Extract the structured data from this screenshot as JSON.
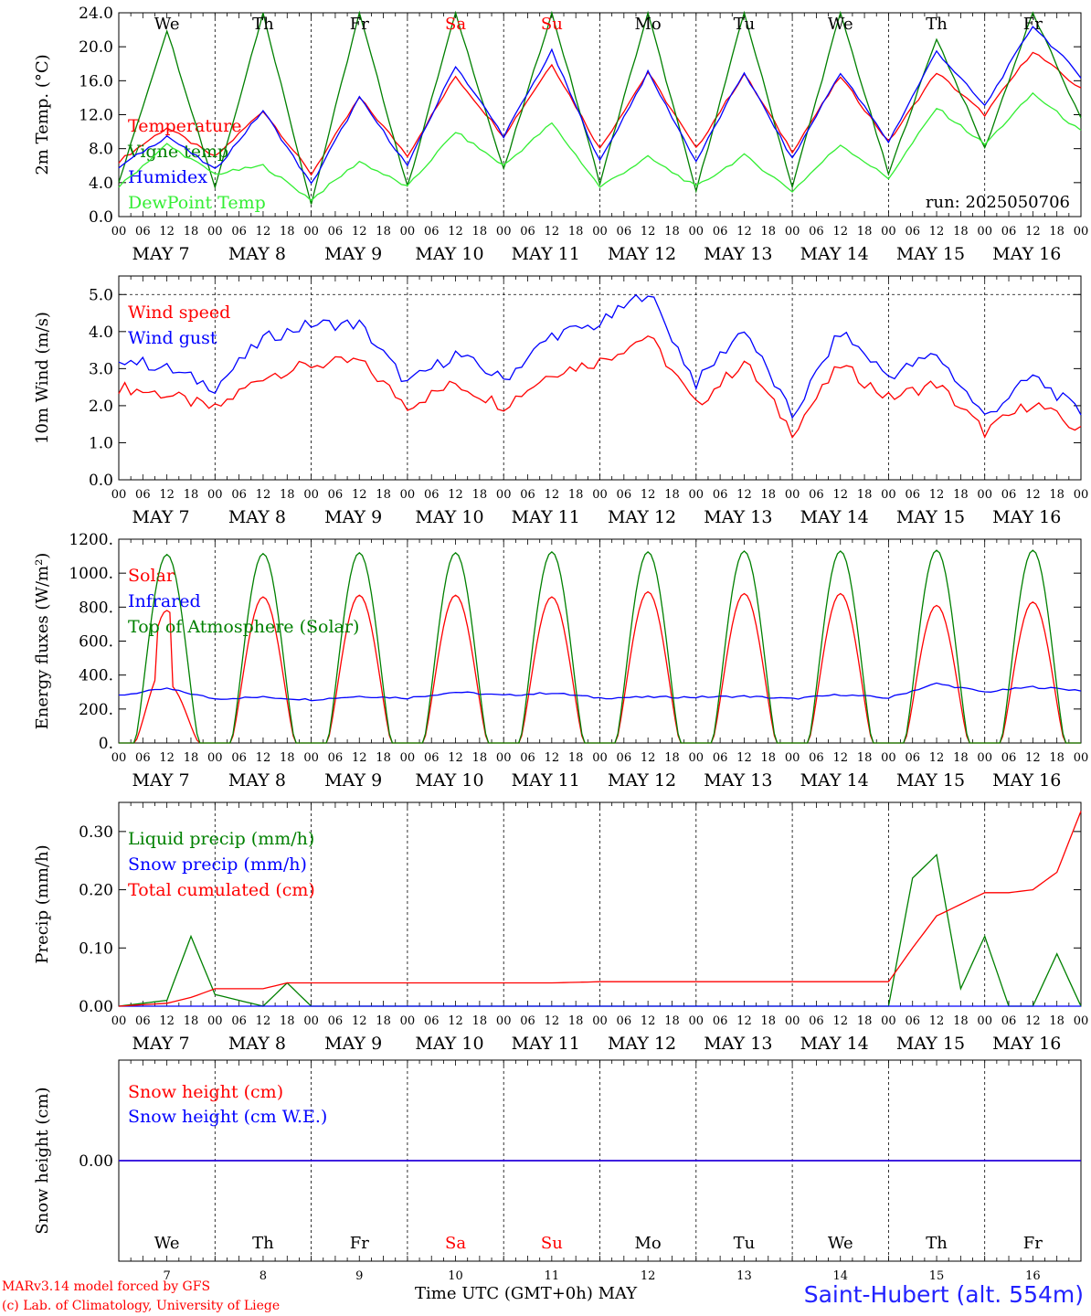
{
  "footer": {
    "model": "MARv3.14 model forced by GFS",
    "copyright": "(c) Lab. of Climatology, University of Liege",
    "time_axis": "Time UTC (GMT+0h)",
    "month": "MAY",
    "station": "Saint-Hubert (alt. 554m)"
  },
  "colors": {
    "red": "#ff0000",
    "blue": "#0000ff",
    "green": "#008000",
    "lightgreen": "#33ee33",
    "weekend": "#ff0000"
  },
  "chart_data": [
    {
      "id": "temp",
      "type": "line",
      "ylabel": "2m Temp. (°C)",
      "ylim": [
        0,
        24
      ],
      "yticks": [
        0,
        4,
        8,
        12,
        16,
        20,
        24
      ],
      "ytick_labels": [
        "0.0",
        "4.0",
        "8.0",
        "12.0",
        "16.0",
        "20.0",
        "24.0"
      ],
      "day_names": [
        "We",
        "Th",
        "Fr",
        "Sa",
        "Su",
        "Mo",
        "Tu",
        "We",
        "Th",
        "Fr"
      ],
      "weekend_days": [
        3,
        4
      ],
      "run_label": "run: 2025050706",
      "x_hours": [
        0,
        12,
        24,
        36,
        48,
        60,
        72,
        84,
        96,
        108,
        120,
        132,
        144,
        156,
        168,
        180,
        192,
        204,
        216,
        228,
        240
      ],
      "series": [
        {
          "name": "Temperature",
          "color": "red",
          "values": [
            6.5,
            10.5,
            7.0,
            12.5,
            5.0,
            14.0,
            7.2,
            16.5,
            9.5,
            18.0,
            8.0,
            17.0,
            8.0,
            16.8,
            7.7,
            16.5,
            8.8,
            17.0,
            12.0,
            19.5,
            15.0
          ]
        },
        {
          "name": "Vigne temp",
          "color": "green",
          "values": [
            4.0,
            22.0,
            3.5,
            24.0,
            1.5,
            24.0,
            3.5,
            24.0,
            5.5,
            24.0,
            4.0,
            24.0,
            3.0,
            24.0,
            3.5,
            24.0,
            5.0,
            21.0,
            8.0,
            24.0,
            11.5
          ]
        },
        {
          "name": "Humidex",
          "color": "blue",
          "values": [
            5.8,
            9.5,
            5.5,
            12.5,
            3.8,
            14.0,
            6.0,
            17.8,
            9.5,
            19.5,
            6.5,
            17.0,
            6.5,
            17.0,
            6.8,
            17.0,
            8.8,
            19.5,
            13.0,
            22.5,
            16.5
          ]
        },
        {
          "name": "DewPoint Temp",
          "color": "lightgreen",
          "values": [
            3.5,
            8.5,
            5.0,
            6.0,
            2.0,
            6.5,
            3.5,
            10.0,
            6.0,
            11.0,
            3.5,
            7.0,
            3.5,
            7.2,
            3.0,
            8.5,
            4.5,
            12.8,
            8.5,
            14.5,
            10.0
          ]
        }
      ]
    },
    {
      "id": "wind",
      "type": "line",
      "ylabel": "10m Wind (m/s)",
      "ylim": [
        0,
        5.5
      ],
      "yticks": [
        0,
        1,
        2,
        3,
        4,
        5
      ],
      "ytick_labels": [
        "0.0",
        "1.0",
        "2.0",
        "3.0",
        "4.0",
        "5.0"
      ],
      "dashed_y": 5.0,
      "x_hours": [
        0,
        12,
        24,
        36,
        48,
        60,
        72,
        84,
        96,
        108,
        120,
        132,
        144,
        156,
        168,
        180,
        192,
        204,
        216,
        228,
        240
      ],
      "series": [
        {
          "name": "Wind speed",
          "color": "red",
          "values": [
            2.5,
            2.3,
            1.9,
            2.8,
            3.1,
            3.2,
            2.0,
            2.6,
            2.0,
            2.9,
            3.2,
            3.9,
            2.0,
            3.2,
            1.3,
            3.1,
            2.2,
            2.6,
            1.3,
            2.1,
            1.3
          ]
        },
        {
          "name": "Wind gust",
          "color": "blue",
          "values": [
            3.3,
            3.0,
            2.5,
            3.8,
            4.2,
            4.2,
            2.6,
            3.4,
            2.7,
            3.9,
            4.2,
            5.1,
            2.6,
            4.1,
            1.7,
            4.0,
            2.8,
            3.4,
            1.7,
            2.8,
            1.8
          ]
        }
      ]
    },
    {
      "id": "energy",
      "type": "line",
      "ylabel": "Energy fluxes (W/m²)",
      "ylim": [
        0,
        1200
      ],
      "yticks": [
        0,
        200,
        400,
        600,
        800,
        1000,
        1200
      ],
      "ytick_labels": [
        "0.",
        "200.",
        "400.",
        "600.",
        "800.",
        "1000.",
        "1200."
      ],
      "x_hours": [
        0,
        12,
        24,
        36,
        48,
        60,
        72,
        84,
        96,
        108,
        120,
        132,
        144,
        156,
        168,
        180,
        192,
        204,
        216,
        228,
        240
      ],
      "series": [
        {
          "name": "Solar",
          "color": "red",
          "day_peaks": [
            780,
            860,
            870,
            870,
            860,
            890,
            880,
            880,
            810,
            830
          ],
          "cloudy_day": 0,
          "cloudy_dips": [
            [
              0.4,
              450
            ],
            [
              0.7,
              250
            ]
          ]
        },
        {
          "name": "Infrared",
          "color": "blue",
          "values": [
            280,
            320,
            260,
            270,
            255,
            275,
            265,
            300,
            280,
            295,
            265,
            270,
            270,
            275,
            260,
            285,
            265,
            350,
            300,
            330,
            310
          ]
        },
        {
          "name": "Top of Atmosphere (Solar)",
          "color": "green",
          "day_peaks": [
            1110,
            1115,
            1120,
            1120,
            1125,
            1125,
            1130,
            1130,
            1135,
            1135
          ]
        }
      ]
    },
    {
      "id": "precip",
      "type": "line",
      "ylabel": "Precip (mm/h)",
      "ylim": [
        0,
        0.35
      ],
      "yticks": [
        0,
        0.1,
        0.2,
        0.3
      ],
      "ytick_labels": [
        "0.00",
        "0.10",
        "0.20",
        "0.30"
      ],
      "x_hours": [
        0,
        12,
        18,
        24,
        36,
        42,
        48,
        60,
        72,
        84,
        96,
        108,
        120,
        132,
        144,
        156,
        168,
        180,
        192,
        198,
        204,
        210,
        216,
        222,
        228,
        234,
        240
      ],
      "series": [
        {
          "name": "Liquid precip (mm/h)",
          "color": "green",
          "values": [
            0,
            0.01,
            0.12,
            0.02,
            0,
            0.04,
            0,
            0,
            0,
            0,
            0,
            0,
            0,
            0,
            0,
            0,
            0,
            0,
            0,
            0.22,
            0.26,
            0.03,
            0.12,
            0,
            0,
            0.09,
            0
          ]
        },
        {
          "name": "Snow precip (mm/h)",
          "color": "blue",
          "values": [
            0,
            0,
            0,
            0,
            0,
            0,
            0,
            0,
            0,
            0,
            0,
            0,
            0,
            0,
            0,
            0,
            0,
            0,
            0,
            0,
            0,
            0,
            0,
            0,
            0,
            0,
            0
          ]
        },
        {
          "name": "Total cumulated (cm)",
          "color": "red",
          "values": [
            0,
            0.005,
            0.015,
            0.03,
            0.03,
            0.04,
            0.04,
            0.04,
            0.04,
            0.04,
            0.04,
            0.04,
            0.042,
            0.042,
            0.042,
            0.042,
            0.042,
            0.042,
            0.042,
            0.1,
            0.155,
            0.175,
            0.195,
            0.195,
            0.2,
            0.23,
            0.335
          ]
        }
      ]
    },
    {
      "id": "snow",
      "type": "line",
      "ylabel": "Snow height (cm)",
      "ylim": [
        -1,
        1
      ],
      "yticks": [
        0
      ],
      "ytick_labels": [
        "0.00"
      ],
      "day_names": [
        "We",
        "Th",
        "Fr",
        "Sa",
        "Su",
        "Mo",
        "Tu",
        "We",
        "Th",
        "Fr"
      ],
      "weekend_days": [
        3,
        4
      ],
      "day_numbers": [
        "7",
        "8",
        "9",
        "10",
        "11",
        "12",
        "13",
        "14",
        "15",
        "16"
      ],
      "x_hours": [
        0,
        240
      ],
      "series": [
        {
          "name": "Snow height (cm)",
          "color": "red",
          "values": [
            0,
            0
          ]
        },
        {
          "name": "Snow height (cm W.E.)",
          "color": "blue",
          "values": [
            0,
            0
          ]
        }
      ]
    }
  ],
  "time_axis": {
    "hour_labels": [
      "00",
      "06",
      "12",
      "18"
    ],
    "last_label": "00",
    "dates": [
      "MAY 7",
      "MAY 8",
      "MAY 9",
      "MAY 10",
      "MAY 11",
      "MAY 12",
      "MAY 13",
      "MAY 14",
      "MAY 15",
      "MAY 16"
    ]
  }
}
